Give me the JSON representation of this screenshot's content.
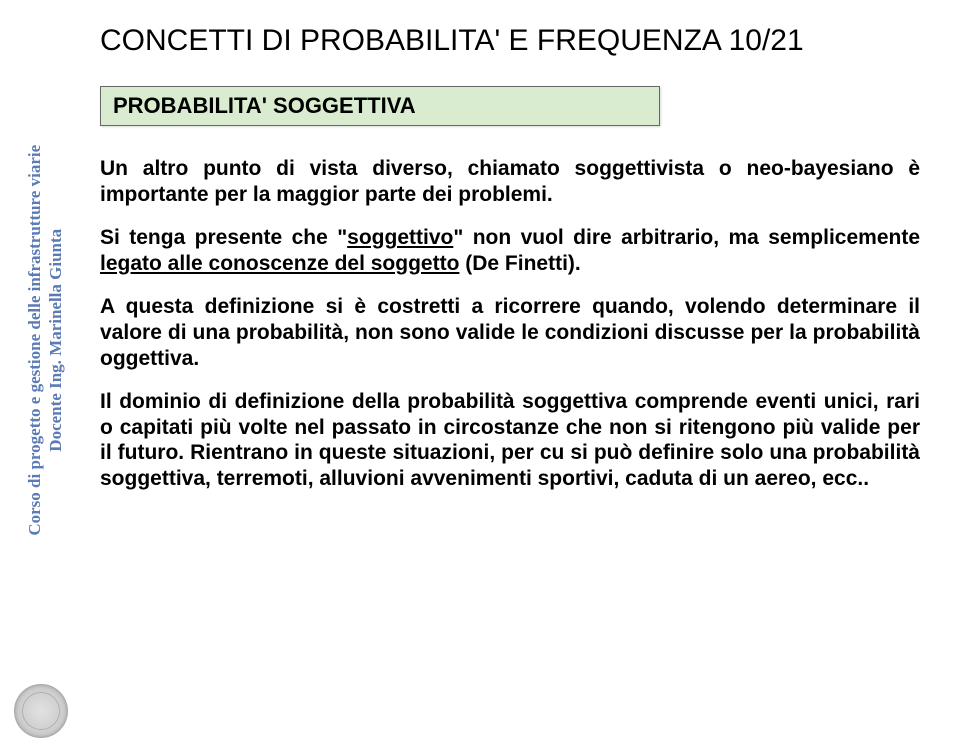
{
  "sidebar": {
    "line1": "Corso di progetto e gestione delle infrastrutture viarie",
    "line2": "Docente Ing. Marinella Giunta",
    "color": "#5b7bb4"
  },
  "title": "CONCETTI DI PROBABILITA' E FREQUENZA 10/21",
  "box": {
    "label": "PROBABILITA' SOGGETTIVA",
    "bg": "#d9ecd0",
    "border": "#666666"
  },
  "paragraphs": {
    "p1": "Un altro punto di vista diverso, chiamato soggettivista o neo-bayesiano è importante per la maggior parte dei problemi.",
    "p2_pre": "Si tenga presente che \"",
    "p2_u1": "soggettivo",
    "p2_mid": "\" non vuol dire arbitrario, ma semplicemente ",
    "p2_u2": "legato alle conoscenze del soggetto",
    "p2_post": " (De Finetti).",
    "p3": "A questa definizione si è costretti a ricorrere quando, volendo determinare il valore di una probabilità, non sono valide le condizioni discusse per la probabilità oggettiva.",
    "p4": "Il dominio di definizione della probabilità soggettiva comprende eventi unici, rari o capitati più volte nel passato in circostanze che non si ritengono più valide per il futuro. Rientrano in queste situazioni, per cu si può definire solo una probabilità soggettiva, terremoti, alluvioni avvenimenti sportivi, caduta di un aereo, ecc.."
  },
  "colors": {
    "text": "#000000",
    "background": "#ffffff"
  }
}
